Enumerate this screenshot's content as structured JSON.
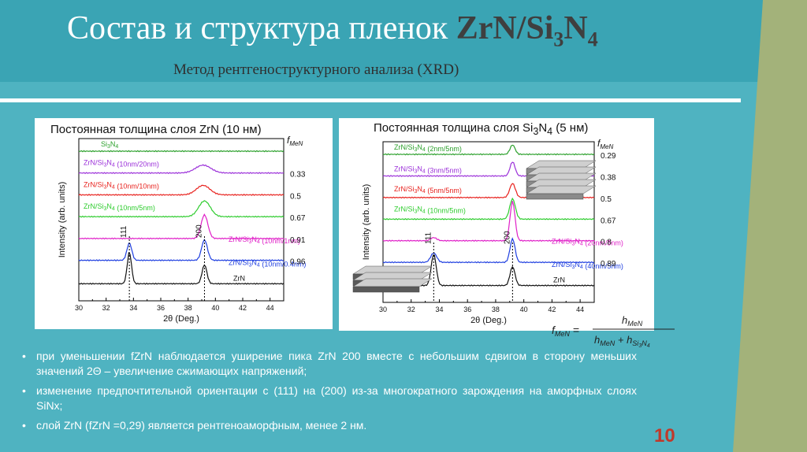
{
  "slide": {
    "title_text": "Состав и структура пленок",
    "title_formula": "ZrN/Si",
    "title_formula_sub3": "3",
    "title_formula_n": "N",
    "title_formula_sub4": "4",
    "subtitle": "Метод рентгеноструктурного анализа (XRD)",
    "page_number": "10"
  },
  "left_chart": {
    "title": "Постоянная толщина слоя ZrN (10 нм)",
    "ylabel": "Intensity (arb. units)",
    "xlabel": "2θ (Deg.)",
    "xticks": [
      "30",
      "32",
      "34",
      "36",
      "38",
      "40",
      "42",
      "44"
    ],
    "fmen_header": "f",
    "fmen_sub": "MeN",
    "peak_111": "111",
    "peak_200": "200",
    "curves": [
      {
        "label": "Si3N4",
        "fmen": "",
        "color": "#2ca02c"
      },
      {
        "label": "ZrN/Si3N4 (10nm/20nm)",
        "fmen": "0.33",
        "color": "#9b30d9"
      },
      {
        "label": "ZrN/Si3N4 (10nm/10nm)",
        "fmen": "0.5",
        "color": "#e8211d"
      },
      {
        "label": "ZrN/Si3N4 (10nm/5nm)",
        "fmen": "0.67",
        "color": "#2ecc2e"
      },
      {
        "label": "ZrN/Si3N4 (10nm/1nm)",
        "fmen": "0.91",
        "color": "#e020c8"
      },
      {
        "label": "ZrN/Si3N4 (10nm/0.4nm)",
        "fmen": "0.96",
        "color": "#1f3fe0"
      },
      {
        "label": "ZrN",
        "fmen": "",
        "color": "#111111"
      }
    ]
  },
  "right_chart": {
    "title": "Постоянная толщина слоя Si3N4 (5 нм)",
    "ylabel": "Intensity (arb. units)",
    "xlabel": "2θ (Deg.)",
    "xticks": [
      "30",
      "32",
      "34",
      "36",
      "38",
      "40",
      "42",
      "44"
    ],
    "fmen_header": "f",
    "fmen_sub": "MeN",
    "peak_111": "111",
    "peak_200": "200",
    "curves": [
      {
        "label": "ZrN/Si3N4 (2nm/5nm)",
        "fmen": "0.29",
        "color": "#2ca02c"
      },
      {
        "label": "ZrN/Si3N4 (3nm/5nm)",
        "fmen": "0.38",
        "color": "#9b30d9"
      },
      {
        "label": "ZrN/Si3N4 (5nm/5nm)",
        "fmen": "0.5",
        "color": "#e8211d"
      },
      {
        "label": "ZrN/Si3N4 (10nm/5nm)",
        "fmen": "0.67",
        "color": "#2ecc2e"
      },
      {
        "label": "ZrN/Si3N4 (20nm/5nm)",
        "fmen": "0.8",
        "color": "#e020c8"
      },
      {
        "label": "ZrN/Si3N4 (40nm/5nm)",
        "fmen": "0.89",
        "color": "#1f3fe0"
      },
      {
        "label": "ZrN",
        "fmen": "",
        "color": "#111111"
      }
    ]
  },
  "formula": {
    "lhs": "f",
    "lhs_sub": "MeN",
    "numerator": "h",
    "numerator_sub": "MeN",
    "den_h1": "h",
    "den_h1_sub": "MeN",
    "den_plus": "+ h",
    "den_h2_sub": "Si",
    "den_h2_sub3": "3",
    "den_h2_n": "N",
    "den_h2_sub4": "4"
  },
  "bullets": [
    "при уменьшении fZrN наблюдается уширение пика ZrN 200 вместе с небольшим сдвигом в сторону меньших значений 2Θ – увеличение сжимающих напряжений;",
    "изменение предпочтительной ориентации с (111) на (200) из-за многократного зарождения на аморфных слоях SiNx;",
    "слой ZrN (fZrN =0,29) является рентгеноаморфным, менее 2 нм."
  ],
  "colors": {
    "background": "#4fb3c1",
    "title_band": "#3aa4b4",
    "sidebar": "#a3b27a",
    "page_number": "#c0392b"
  }
}
